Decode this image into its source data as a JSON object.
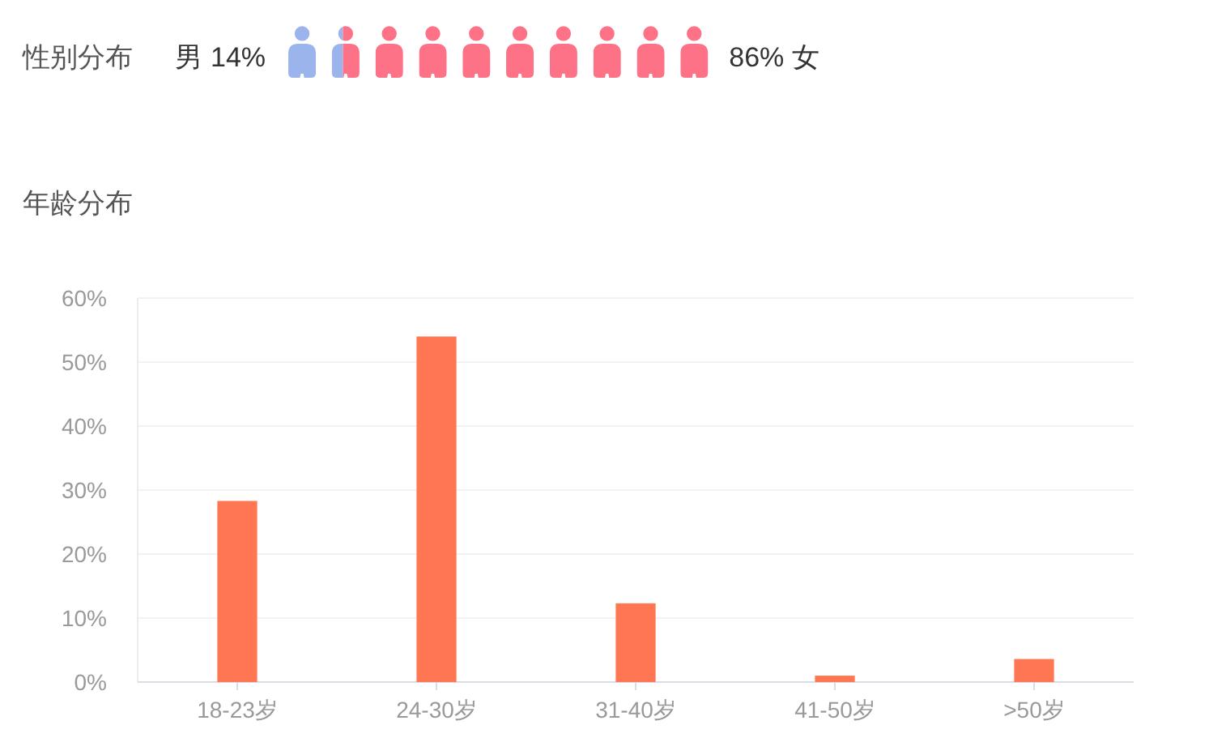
{
  "chart_data": [
    {
      "type": "other",
      "title": "性别分布",
      "categories": [
        "男",
        "女"
      ],
      "values": [
        14,
        86
      ],
      "value_labels": [
        "14%",
        "86%"
      ],
      "colors": [
        "#9bb4ec",
        "#fd7286"
      ]
    },
    {
      "type": "bar",
      "title": "年龄分布",
      "categories": [
        "18-23岁",
        "24-30岁",
        "31-40岁",
        "41-50岁",
        ">50岁"
      ],
      "values": [
        28.3,
        54,
        12.3,
        1,
        3.6
      ],
      "color": "#ff7653",
      "ylim": [
        0,
        60
      ],
      "yticks": [
        {
          "value": 0,
          "label": "0%"
        },
        {
          "value": 10,
          "label": "10%"
        },
        {
          "value": 20,
          "label": "20%"
        },
        {
          "value": 30,
          "label": "30%"
        },
        {
          "value": 40,
          "label": "40%"
        },
        {
          "value": 50,
          "label": "50%"
        },
        {
          "value": 60,
          "label": "60%"
        }
      ],
      "grid": "y"
    }
  ]
}
